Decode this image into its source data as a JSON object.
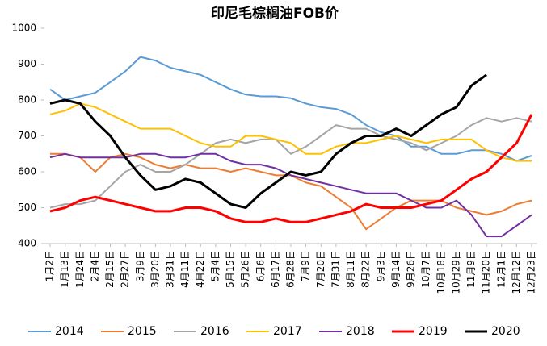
{
  "chart_data": {
    "type": "line",
    "title": "印尼毛棕榈油FOB价",
    "categories": [
      "1月2日",
      "1月13日",
      "1月24日",
      "2月4日",
      "2月15日",
      "2月27日",
      "3月9日",
      "3月20日",
      "3月31日",
      "4月11日",
      "4月22日",
      "5月4日",
      "5月15日",
      "5月26日",
      "6月6日",
      "6月17日",
      "6月28日",
      "7月9日",
      "7月20日",
      "7月31日",
      "8月11日",
      "8月22日",
      "9月3日",
      "9月14日",
      "9月26日",
      "10月7日",
      "10月18日",
      "10月29日",
      "11月9日",
      "11月20日",
      "12月1日",
      "12月12日",
      "12月23日"
    ],
    "ylim": [
      400,
      1000
    ],
    "yticks": [
      400,
      500,
      600,
      700,
      800,
      900,
      1000
    ],
    "legend": "bottom",
    "series": [
      {
        "name": "2014",
        "color": "#5b9bd5",
        "width": 2,
        "values": [
          830,
          800,
          810,
          820,
          850,
          880,
          920,
          910,
          890,
          880,
          870,
          850,
          830,
          815,
          810,
          810,
          805,
          790,
          780,
          775,
          760,
          730,
          710,
          700,
          670,
          670,
          650,
          650,
          660,
          660,
          650,
          630,
          645
        ]
      },
      {
        "name": "2015",
        "color": "#ed7d31",
        "width": 2,
        "values": [
          650,
          650,
          640,
          600,
          640,
          650,
          640,
          620,
          610,
          620,
          610,
          610,
          600,
          610,
          600,
          590,
          590,
          570,
          560,
          530,
          500,
          440,
          470,
          500,
          520,
          520,
          520,
          500,
          490,
          480,
          490,
          510,
          520
        ]
      },
      {
        "name": "2016",
        "color": "#a5a5a5",
        "width": 2,
        "values": [
          500,
          510,
          510,
          520,
          560,
          600,
          620,
          600,
          600,
          620,
          650,
          680,
          690,
          680,
          690,
          690,
          650,
          670,
          700,
          730,
          720,
          720,
          700,
          690,
          680,
          660,
          680,
          700,
          730,
          750,
          740,
          750,
          740
        ]
      },
      {
        "name": "2017",
        "color": "#ffc000",
        "width": 2,
        "values": [
          760,
          770,
          790,
          780,
          760,
          740,
          720,
          720,
          720,
          700,
          680,
          670,
          670,
          700,
          700,
          690,
          680,
          650,
          650,
          670,
          680,
          680,
          690,
          700,
          690,
          680,
          690,
          690,
          690,
          660,
          640,
          630,
          630
        ]
      },
      {
        "name": "2018",
        "color": "#7030a0",
        "width": 2,
        "values": [
          640,
          650,
          640,
          640,
          640,
          640,
          650,
          650,
          640,
          640,
          650,
          650,
          630,
          620,
          620,
          610,
          590,
          580,
          570,
          560,
          550,
          540,
          540,
          540,
          520,
          500,
          500,
          520,
          480,
          420,
          420,
          450,
          480
        ]
      },
      {
        "name": "2019",
        "color": "#ff0000",
        "width": 3,
        "values": [
          490,
          500,
          520,
          530,
          520,
          510,
          500,
          490,
          490,
          500,
          500,
          490,
          470,
          460,
          460,
          470,
          460,
          460,
          470,
          480,
          490,
          510,
          500,
          500,
          500,
          510,
          520,
          550,
          580,
          600,
          640,
          680,
          760
        ]
      },
      {
        "name": "2020",
        "color": "#000000",
        "width": 3,
        "values": [
          790,
          800,
          790,
          740,
          700,
          640,
          590,
          550,
          560,
          580,
          570,
          540,
          510,
          500,
          540,
          570,
          600,
          590,
          600,
          650,
          680,
          700,
          700,
          720,
          700,
          730,
          760,
          780,
          840,
          870,
          null,
          null,
          null
        ]
      }
    ]
  }
}
